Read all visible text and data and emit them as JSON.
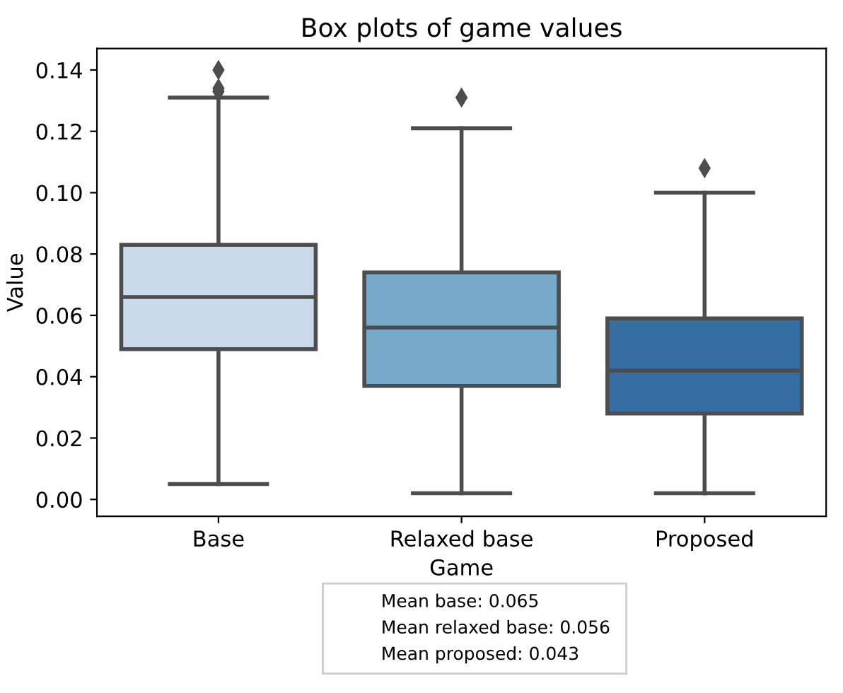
{
  "chart_data": {
    "type": "box",
    "title": "Box plots of game values",
    "xlabel": "Game",
    "ylabel": "Value",
    "categories": [
      "Base",
      "Relaxed base",
      "Proposed"
    ],
    "colors": [
      "#cbdaea",
      "#77a9ca",
      "#346ea3"
    ],
    "boxes": [
      {
        "low": 0.005,
        "q1": 0.049,
        "median": 0.066,
        "q3": 0.083,
        "high": 0.131,
        "outliers": [
          0.133,
          0.134,
          0.14
        ]
      },
      {
        "low": 0.002,
        "q1": 0.037,
        "median": 0.056,
        "q3": 0.074,
        "high": 0.121,
        "outliers": [
          0.131
        ]
      },
      {
        "low": 0.002,
        "q1": 0.028,
        "median": 0.042,
        "q3": 0.059,
        "high": 0.1,
        "outliers": [
          0.108
        ]
      }
    ],
    "ylim": [
      -0.0055,
      0.147
    ],
    "yticks": [
      {
        "value": 0,
        "label": "0.00"
      },
      {
        "value": 0.02,
        "label": "0.02"
      },
      {
        "value": 0.04,
        "label": "0.04"
      },
      {
        "value": 0.06,
        "label": "0.06"
      },
      {
        "value": 0.08,
        "label": "0.08"
      },
      {
        "value": 0.1,
        "label": "0.10"
      },
      {
        "value": 0.12,
        "label": "0.12"
      },
      {
        "value": 0.14,
        "label": "0.14"
      }
    ],
    "grid": false,
    "annotations": [
      "Mean base: 0.065",
      "Mean relaxed base: 0.056",
      "Mean proposed: 0.043"
    ]
  }
}
